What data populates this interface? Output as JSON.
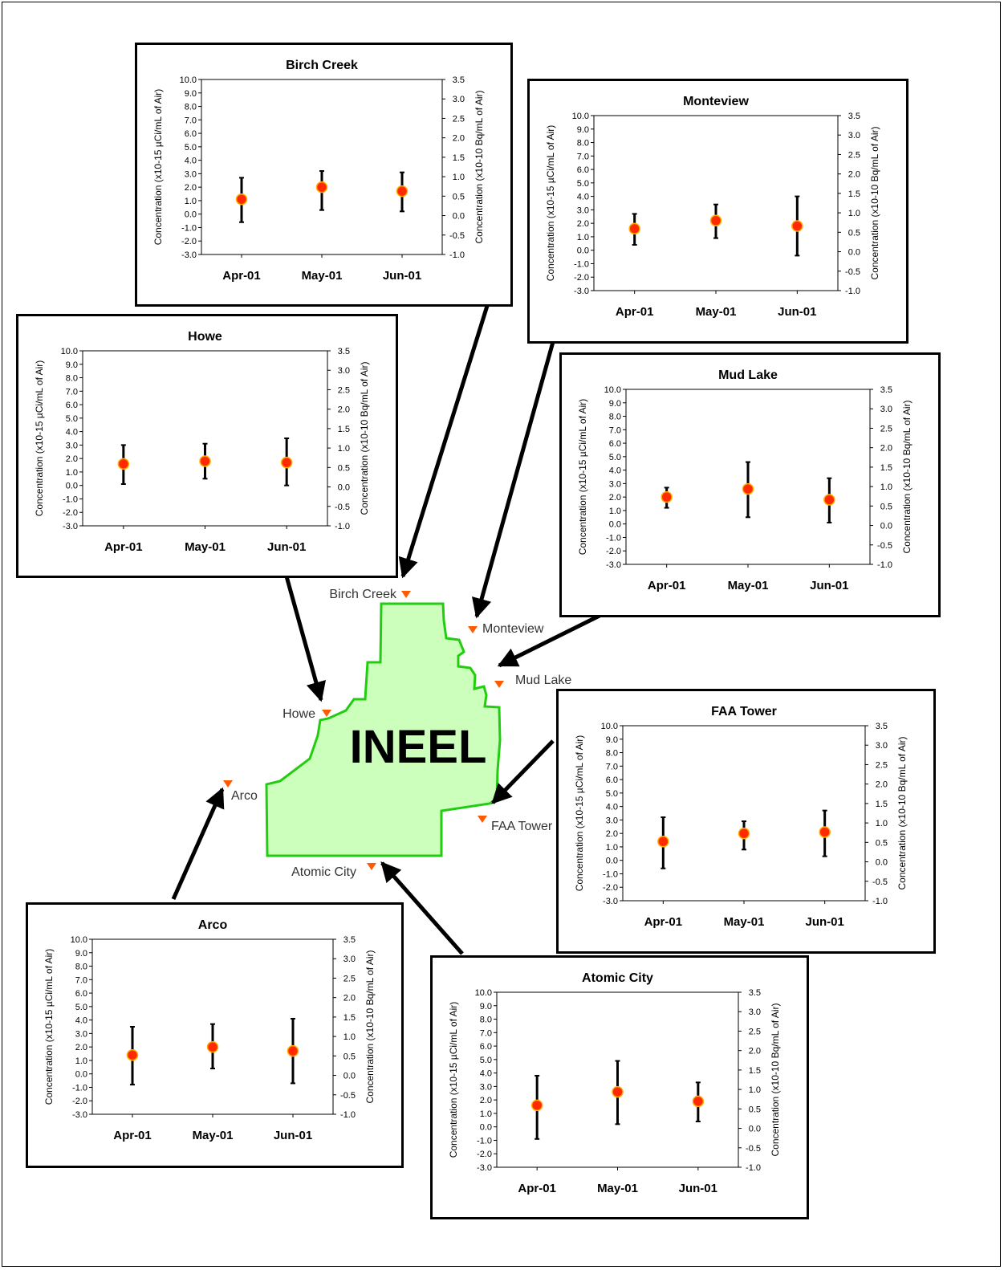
{
  "colors": {
    "marker_fill": "#ff2a00",
    "marker_stroke": "#ffb000",
    "site_marker": "#ff5a00",
    "region_fill": "#ccffbb",
    "region_stroke": "#22cc11"
  },
  "map": {
    "region_label": "INEEL",
    "sites": [
      "Birch Creek",
      "Monteview",
      "Mud Lake",
      "Howe",
      "Arco",
      "FAA Tower",
      "Atomic City"
    ]
  },
  "chart_data": [
    {
      "type": "scatter",
      "title": "Birch Creek",
      "categories": [
        "Apr-01",
        "May-01",
        "Jun-01"
      ],
      "values": [
        1.1,
        2.0,
        1.7
      ],
      "error_low": [
        -0.6,
        0.3,
        0.2
      ],
      "error_high": [
        2.7,
        3.2,
        3.1
      ],
      "ylabel_left": "Concentration (x10-15 µCi/mL of Air)",
      "ylabel_right": "Concentration (x10-10 Bq/mL of Air)",
      "ylim": [
        -3.0,
        10.0
      ],
      "y2lim": [
        -1.0,
        3.5
      ],
      "y_ticks": [
        "10.0",
        "9.0",
        "8.0",
        "7.0",
        "6.0",
        "5.0",
        "4.0",
        "3.0",
        "2.0",
        "1.0",
        "0.0",
        "-1.0",
        "-2.0",
        "-3.0"
      ],
      "y2_ticks": [
        "3.5",
        "3.0",
        "2.5",
        "2.0",
        "1.5",
        "1.0",
        "0.5",
        "0.0",
        "-0.5",
        "-1.0"
      ]
    },
    {
      "type": "scatter",
      "title": "Monteview",
      "categories": [
        "Apr-01",
        "May-01",
        "Jun-01"
      ],
      "values": [
        1.6,
        2.2,
        1.8
      ],
      "error_low": [
        0.4,
        0.9,
        -0.4
      ],
      "error_high": [
        2.7,
        3.4,
        4.0
      ],
      "ylabel_left": "Concentration (x10-15 µCi/mL of Air)",
      "ylabel_right": "Concentration (x10-10 Bq/mL of Air)",
      "ylim": [
        -3.0,
        10.0
      ],
      "y2lim": [
        -1.0,
        3.5
      ],
      "y_ticks": [
        "10.0",
        "9.0",
        "8.0",
        "7.0",
        "6.0",
        "5.0",
        "4.0",
        "3.0",
        "2.0",
        "1.0",
        "0.0",
        "-1.0",
        "-2.0",
        "-3.0"
      ],
      "y2_ticks": [
        "3.5",
        "3.0",
        "2.5",
        "2.0",
        "1.5",
        "1.0",
        "0.5",
        "0.0",
        "-0.5",
        "-1.0"
      ]
    },
    {
      "type": "scatter",
      "title": "Howe",
      "categories": [
        "Apr-01",
        "May-01",
        "Jun-01"
      ],
      "values": [
        1.6,
        1.8,
        1.7
      ],
      "error_low": [
        0.1,
        0.5,
        0.0
      ],
      "error_high": [
        3.0,
        3.1,
        3.5
      ],
      "ylabel_left": "Concentration (x10-15 µCi/mL of Air)",
      "ylabel_right": "Concentration (x10-10 Bq/mL of Air)",
      "ylim": [
        -3.0,
        10.0
      ],
      "y2lim": [
        -1.0,
        3.5
      ],
      "y_ticks": [
        "10.0",
        "9.0",
        "8.0",
        "7.0",
        "6.0",
        "5.0",
        "4.0",
        "3.0",
        "2.0",
        "1.0",
        "0.0",
        "-1.0",
        "-2.0",
        "-3.0"
      ],
      "y2_ticks": [
        "3.5",
        "3.0",
        "2.5",
        "2.0",
        "1.5",
        "1.0",
        "0.5",
        "0.0",
        "-0.5",
        "-1.0"
      ]
    },
    {
      "type": "scatter",
      "title": "Mud Lake",
      "categories": [
        "Apr-01",
        "May-01",
        "Jun-01"
      ],
      "values": [
        2.0,
        2.6,
        1.8
      ],
      "error_low": [
        1.2,
        0.5,
        0.1
      ],
      "error_high": [
        2.7,
        4.6,
        3.4
      ],
      "ylabel_left": "Concentration (x10-15 µCi/mL of Air)",
      "ylabel_right": "Concentration (x10-10 Bq/mL of Air)",
      "ylim": [
        -3.0,
        10.0
      ],
      "y2lim": [
        -1.0,
        3.5
      ],
      "y_ticks": [
        "10.0",
        "9.0",
        "8.0",
        "7.0",
        "6.0",
        "5.0",
        "4.0",
        "3.0",
        "2.0",
        "1.0",
        "0.0",
        "-1.0",
        "-2.0",
        "-3.0"
      ],
      "y2_ticks": [
        "3.5",
        "3.0",
        "2.5",
        "2.0",
        "1.5",
        "1.0",
        "0.5",
        "0.0",
        "-0.5",
        "-1.0"
      ]
    },
    {
      "type": "scatter",
      "title": "FAA Tower",
      "categories": [
        "Apr-01",
        "May-01",
        "Jun-01"
      ],
      "values": [
        1.4,
        2.0,
        2.1
      ],
      "error_low": [
        -0.6,
        0.8,
        0.3
      ],
      "error_high": [
        3.2,
        2.9,
        3.7
      ],
      "ylabel_left": "Concentration (x10-15 µCi/mL of Air)",
      "ylabel_right": "Concentration (x10-10 Bq/mL of Air)",
      "ylim": [
        -3.0,
        10.0
      ],
      "y2lim": [
        -1.0,
        3.5
      ],
      "y_ticks": [
        "10.0",
        "9.0",
        "8.0",
        "7.0",
        "6.0",
        "5.0",
        "4.0",
        "3.0",
        "2.0",
        "1.0",
        "0.0",
        "-1.0",
        "-2.0",
        "-3.0"
      ],
      "y2_ticks": [
        "3.5",
        "3.0",
        "2.5",
        "2.0",
        "1.5",
        "1.0",
        "0.5",
        "0.0",
        "-0.5",
        "-1.0"
      ]
    },
    {
      "type": "scatter",
      "title": "Arco",
      "categories": [
        "Apr-01",
        "May-01",
        "Jun-01"
      ],
      "values": [
        1.4,
        2.0,
        1.7
      ],
      "error_low": [
        -0.8,
        0.4,
        -0.7
      ],
      "error_high": [
        3.5,
        3.7,
        4.1
      ],
      "ylabel_left": "Concentration (x10-15 µCi/mL of Air)",
      "ylabel_right": "Concentration (x10-10 Bq/mL of Air)",
      "ylim": [
        -3.0,
        10.0
      ],
      "y2lim": [
        -1.0,
        3.5
      ],
      "y_ticks": [
        "10.0",
        "9.0",
        "8.0",
        "7.0",
        "6.0",
        "5.0",
        "4.0",
        "3.0",
        "2.0",
        "1.0",
        "0.0",
        "-1.0",
        "-2.0",
        "-3.0"
      ],
      "y2_ticks": [
        "3.5",
        "3.0",
        "2.5",
        "2.0",
        "1.5",
        "1.0",
        "0.5",
        "0.0",
        "-0.5",
        "-1.0"
      ]
    },
    {
      "type": "scatter",
      "title": "Atomic City",
      "categories": [
        "Apr-01",
        "May-01",
        "Jun-01"
      ],
      "values": [
        1.6,
        2.6,
        1.9
      ],
      "error_low": [
        -0.9,
        0.2,
        0.4
      ],
      "error_high": [
        3.8,
        4.9,
        3.3
      ],
      "ylabel_left": "Concentration (x10-15 µCi/mL of Air)",
      "ylabel_right": "Concentration (x10-10 Bq/mL of Air)",
      "ylim": [
        -3.0,
        10.0
      ],
      "y2lim": [
        -1.0,
        3.5
      ],
      "y_ticks": [
        "10.0",
        "9.0",
        "8.0",
        "7.0",
        "6.0",
        "5.0",
        "4.0",
        "3.0",
        "2.0",
        "1.0",
        "0.0",
        "-1.0",
        "-2.0",
        "-3.0"
      ],
      "y2_ticks": [
        "3.5",
        "3.0",
        "2.5",
        "2.0",
        "1.5",
        "1.0",
        "0.5",
        "0.0",
        "-0.5",
        "-1.0"
      ]
    }
  ]
}
